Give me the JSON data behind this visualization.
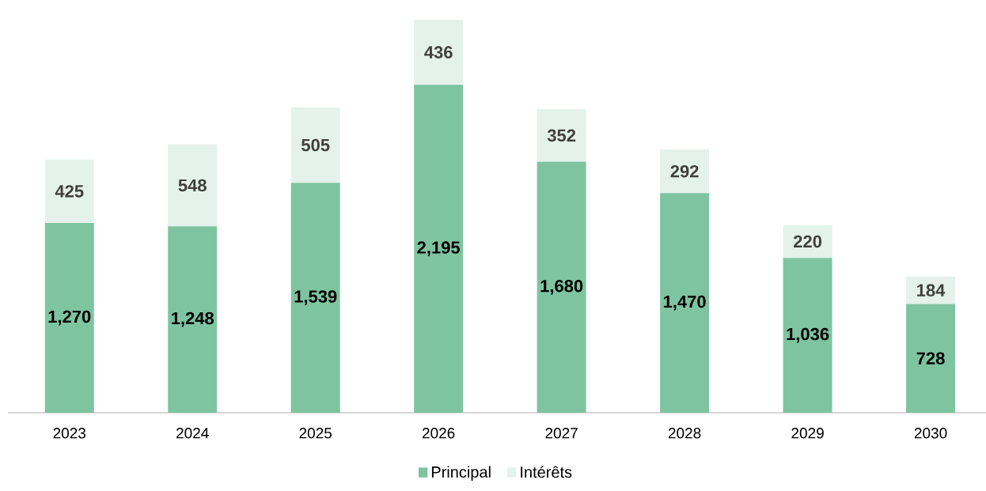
{
  "chart_data": {
    "type": "bar",
    "stacked": true,
    "categories": [
      "2023",
      "2024",
      "2025",
      "2026",
      "2027",
      "2028",
      "2029",
      "2030"
    ],
    "series": [
      {
        "name": "Principal",
        "color": "#7fc4a0",
        "values": [
          1270,
          1248,
          1539,
          2195,
          1680,
          1470,
          1036,
          728
        ],
        "value_labels": [
          "1,270",
          "1,248",
          "1,539",
          "2,195",
          "1,680",
          "1,470",
          "1,036",
          "728"
        ]
      },
      {
        "name": "Intérêts",
        "color": "#e4f2eb",
        "values": [
          425,
          548,
          505,
          436,
          352,
          292,
          220,
          184
        ],
        "value_labels": [
          "425",
          "548",
          "505",
          "436",
          "352",
          "292",
          "220",
          "184"
        ]
      }
    ],
    "legend": "bottom"
  }
}
